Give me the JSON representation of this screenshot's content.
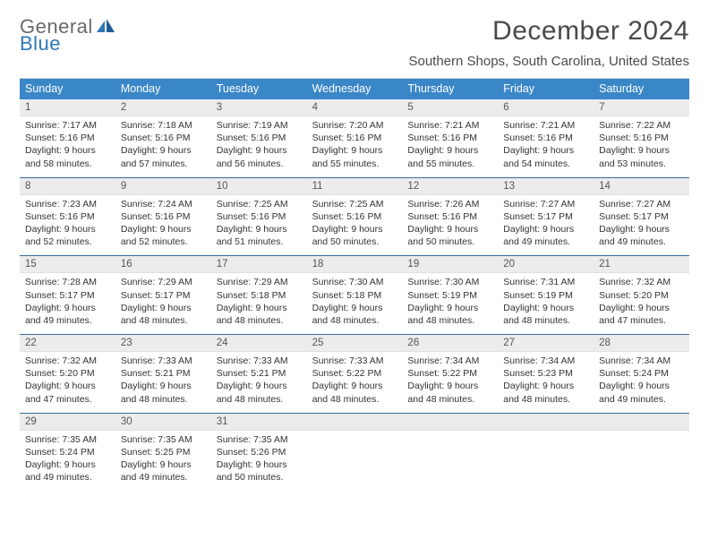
{
  "logo": {
    "text1": "General",
    "text2": "Blue",
    "color_gray": "#6a6a6a",
    "color_blue": "#2f77b9"
  },
  "title": "December 2024",
  "location": "Southern Shops, South Carolina, United States",
  "colors": {
    "header_bg": "#3a87c8",
    "header_text": "#ffffff",
    "daynum_bg": "#ececec",
    "week_border": "#3a6a95"
  },
  "weekdays": [
    "Sunday",
    "Monday",
    "Tuesday",
    "Wednesday",
    "Thursday",
    "Friday",
    "Saturday"
  ],
  "weeks": [
    [
      {
        "n": "1",
        "sr": "Sunrise: 7:17 AM",
        "ss": "Sunset: 5:16 PM",
        "dl1": "Daylight: 9 hours",
        "dl2": "and 58 minutes."
      },
      {
        "n": "2",
        "sr": "Sunrise: 7:18 AM",
        "ss": "Sunset: 5:16 PM",
        "dl1": "Daylight: 9 hours",
        "dl2": "and 57 minutes."
      },
      {
        "n": "3",
        "sr": "Sunrise: 7:19 AM",
        "ss": "Sunset: 5:16 PM",
        "dl1": "Daylight: 9 hours",
        "dl2": "and 56 minutes."
      },
      {
        "n": "4",
        "sr": "Sunrise: 7:20 AM",
        "ss": "Sunset: 5:16 PM",
        "dl1": "Daylight: 9 hours",
        "dl2": "and 55 minutes."
      },
      {
        "n": "5",
        "sr": "Sunrise: 7:21 AM",
        "ss": "Sunset: 5:16 PM",
        "dl1": "Daylight: 9 hours",
        "dl2": "and 55 minutes."
      },
      {
        "n": "6",
        "sr": "Sunrise: 7:21 AM",
        "ss": "Sunset: 5:16 PM",
        "dl1": "Daylight: 9 hours",
        "dl2": "and 54 minutes."
      },
      {
        "n": "7",
        "sr": "Sunrise: 7:22 AM",
        "ss": "Sunset: 5:16 PM",
        "dl1": "Daylight: 9 hours",
        "dl2": "and 53 minutes."
      }
    ],
    [
      {
        "n": "8",
        "sr": "Sunrise: 7:23 AM",
        "ss": "Sunset: 5:16 PM",
        "dl1": "Daylight: 9 hours",
        "dl2": "and 52 minutes."
      },
      {
        "n": "9",
        "sr": "Sunrise: 7:24 AM",
        "ss": "Sunset: 5:16 PM",
        "dl1": "Daylight: 9 hours",
        "dl2": "and 52 minutes."
      },
      {
        "n": "10",
        "sr": "Sunrise: 7:25 AM",
        "ss": "Sunset: 5:16 PM",
        "dl1": "Daylight: 9 hours",
        "dl2": "and 51 minutes."
      },
      {
        "n": "11",
        "sr": "Sunrise: 7:25 AM",
        "ss": "Sunset: 5:16 PM",
        "dl1": "Daylight: 9 hours",
        "dl2": "and 50 minutes."
      },
      {
        "n": "12",
        "sr": "Sunrise: 7:26 AM",
        "ss": "Sunset: 5:16 PM",
        "dl1": "Daylight: 9 hours",
        "dl2": "and 50 minutes."
      },
      {
        "n": "13",
        "sr": "Sunrise: 7:27 AM",
        "ss": "Sunset: 5:17 PM",
        "dl1": "Daylight: 9 hours",
        "dl2": "and 49 minutes."
      },
      {
        "n": "14",
        "sr": "Sunrise: 7:27 AM",
        "ss": "Sunset: 5:17 PM",
        "dl1": "Daylight: 9 hours",
        "dl2": "and 49 minutes."
      }
    ],
    [
      {
        "n": "15",
        "sr": "Sunrise: 7:28 AM",
        "ss": "Sunset: 5:17 PM",
        "dl1": "Daylight: 9 hours",
        "dl2": "and 49 minutes."
      },
      {
        "n": "16",
        "sr": "Sunrise: 7:29 AM",
        "ss": "Sunset: 5:17 PM",
        "dl1": "Daylight: 9 hours",
        "dl2": "and 48 minutes."
      },
      {
        "n": "17",
        "sr": "Sunrise: 7:29 AM",
        "ss": "Sunset: 5:18 PM",
        "dl1": "Daylight: 9 hours",
        "dl2": "and 48 minutes."
      },
      {
        "n": "18",
        "sr": "Sunrise: 7:30 AM",
        "ss": "Sunset: 5:18 PM",
        "dl1": "Daylight: 9 hours",
        "dl2": "and 48 minutes."
      },
      {
        "n": "19",
        "sr": "Sunrise: 7:30 AM",
        "ss": "Sunset: 5:19 PM",
        "dl1": "Daylight: 9 hours",
        "dl2": "and 48 minutes."
      },
      {
        "n": "20",
        "sr": "Sunrise: 7:31 AM",
        "ss": "Sunset: 5:19 PM",
        "dl1": "Daylight: 9 hours",
        "dl2": "and 48 minutes."
      },
      {
        "n": "21",
        "sr": "Sunrise: 7:32 AM",
        "ss": "Sunset: 5:20 PM",
        "dl1": "Daylight: 9 hours",
        "dl2": "and 47 minutes."
      }
    ],
    [
      {
        "n": "22",
        "sr": "Sunrise: 7:32 AM",
        "ss": "Sunset: 5:20 PM",
        "dl1": "Daylight: 9 hours",
        "dl2": "and 47 minutes."
      },
      {
        "n": "23",
        "sr": "Sunrise: 7:33 AM",
        "ss": "Sunset: 5:21 PM",
        "dl1": "Daylight: 9 hours",
        "dl2": "and 48 minutes."
      },
      {
        "n": "24",
        "sr": "Sunrise: 7:33 AM",
        "ss": "Sunset: 5:21 PM",
        "dl1": "Daylight: 9 hours",
        "dl2": "and 48 minutes."
      },
      {
        "n": "25",
        "sr": "Sunrise: 7:33 AM",
        "ss": "Sunset: 5:22 PM",
        "dl1": "Daylight: 9 hours",
        "dl2": "and 48 minutes."
      },
      {
        "n": "26",
        "sr": "Sunrise: 7:34 AM",
        "ss": "Sunset: 5:22 PM",
        "dl1": "Daylight: 9 hours",
        "dl2": "and 48 minutes."
      },
      {
        "n": "27",
        "sr": "Sunrise: 7:34 AM",
        "ss": "Sunset: 5:23 PM",
        "dl1": "Daylight: 9 hours",
        "dl2": "and 48 minutes."
      },
      {
        "n": "28",
        "sr": "Sunrise: 7:34 AM",
        "ss": "Sunset: 5:24 PM",
        "dl1": "Daylight: 9 hours",
        "dl2": "and 49 minutes."
      }
    ],
    [
      {
        "n": "29",
        "sr": "Sunrise: 7:35 AM",
        "ss": "Sunset: 5:24 PM",
        "dl1": "Daylight: 9 hours",
        "dl2": "and 49 minutes."
      },
      {
        "n": "30",
        "sr": "Sunrise: 7:35 AM",
        "ss": "Sunset: 5:25 PM",
        "dl1": "Daylight: 9 hours",
        "dl2": "and 49 minutes."
      },
      {
        "n": "31",
        "sr": "Sunrise: 7:35 AM",
        "ss": "Sunset: 5:26 PM",
        "dl1": "Daylight: 9 hours",
        "dl2": "and 50 minutes."
      },
      {
        "empty": true,
        "n": "",
        "sr": "",
        "ss": "",
        "dl1": "",
        "dl2": ""
      },
      {
        "empty": true,
        "n": "",
        "sr": "",
        "ss": "",
        "dl1": "",
        "dl2": ""
      },
      {
        "empty": true,
        "n": "",
        "sr": "",
        "ss": "",
        "dl1": "",
        "dl2": ""
      },
      {
        "empty": true,
        "n": "",
        "sr": "",
        "ss": "",
        "dl1": "",
        "dl2": ""
      }
    ]
  ]
}
